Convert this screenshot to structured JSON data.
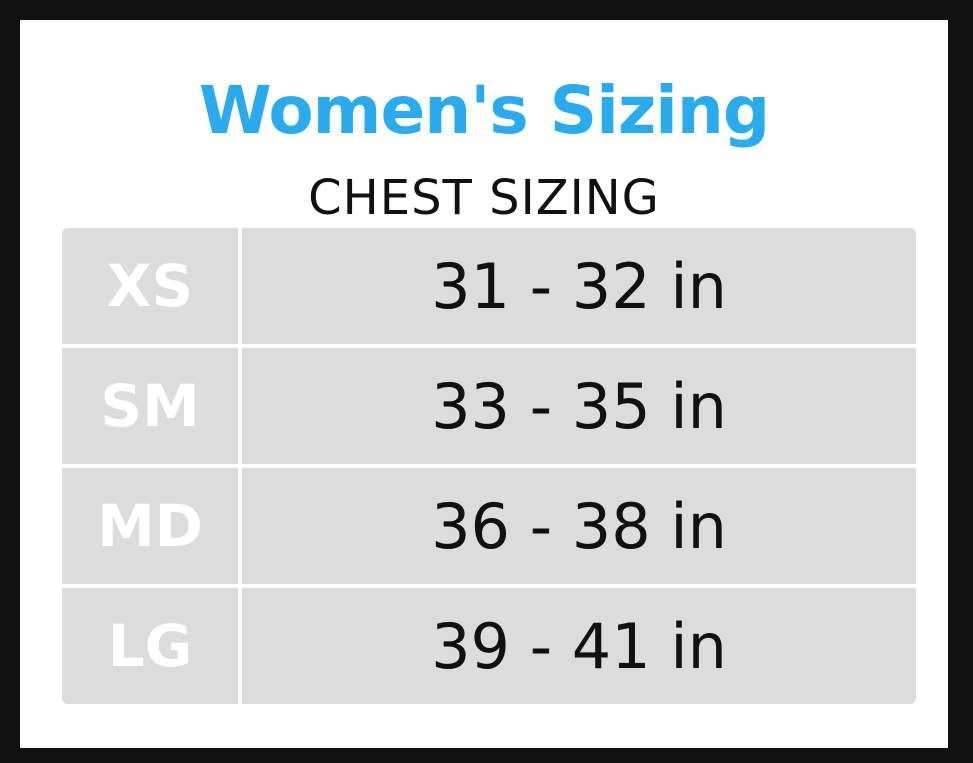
{
  "header": {
    "title": "Women's Sizing",
    "subtitle": "CHEST SIZING"
  },
  "table": {
    "rows": [
      [
        "XS",
        "31 - 32 in"
      ],
      [
        "SM",
        "33 - 35 in"
      ],
      [
        "MD",
        "36 - 38 in"
      ],
      [
        "LG",
        "39 - 41 in"
      ]
    ]
  }
}
